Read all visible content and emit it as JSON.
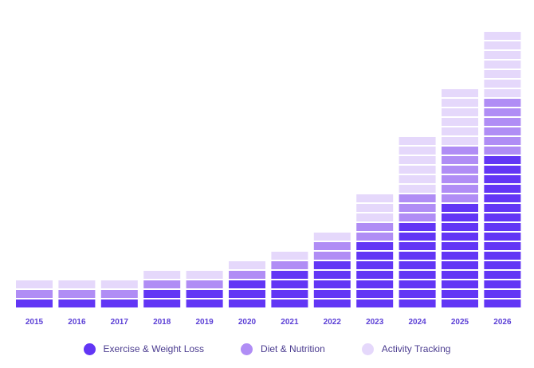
{
  "chart_data": {
    "type": "bar",
    "stacked": true,
    "categories": [
      "2015",
      "2016",
      "2017",
      "2018",
      "2019",
      "2020",
      "2021",
      "2022",
      "2023",
      "2024",
      "2025",
      "2026"
    ],
    "series": [
      {
        "name": "Exercise & Weight Loss",
        "color": "#6236f5",
        "values": [
          1,
          1,
          1,
          2,
          2,
          3,
          4,
          5,
          7,
          9,
          11,
          16
        ]
      },
      {
        "name": "Diet & Nutrition",
        "color": "#b08df5",
        "values": [
          1,
          1,
          1,
          1,
          1,
          1,
          1,
          2,
          2,
          3,
          6,
          6
        ]
      },
      {
        "name": "Activity Tracking",
        "color": "#e5d8fb",
        "values": [
          1,
          1,
          1,
          1,
          1,
          1,
          1,
          1,
          3,
          6,
          6,
          7
        ]
      }
    ],
    "grid": false,
    "legend_position": "bottom"
  }
}
